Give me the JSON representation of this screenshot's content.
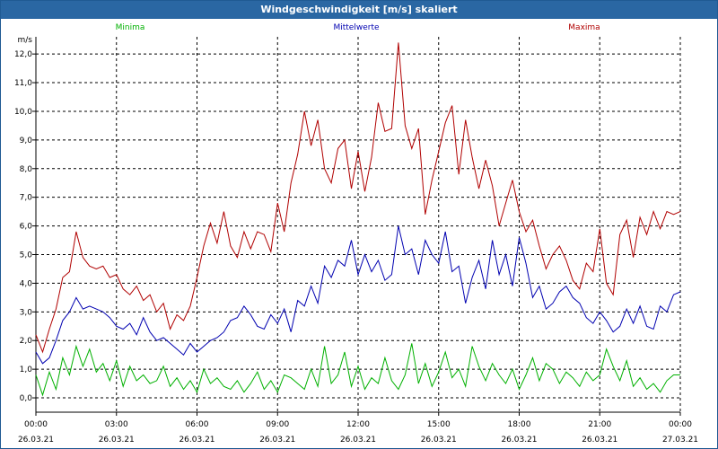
{
  "window": {
    "title": "Windgeschwindigkeit [m/s] skaliert"
  },
  "chart_data": {
    "type": "line",
    "title": "Windgeschwindigkeit [m/s] skaliert",
    "ylabel": "m/s",
    "ylim": [
      -0.5,
      12.6
    ],
    "y_ticks": [
      "0,0",
      "1,0",
      "2,0",
      "3,0",
      "4,0",
      "5,0",
      "6,0",
      "7,0",
      "8,0",
      "9,0",
      "10,0",
      "11,0",
      "12,0"
    ],
    "x_ticks": [
      {
        "time": "00:00",
        "date": "26.03.21"
      },
      {
        "time": "03:00",
        "date": "26.03.21"
      },
      {
        "time": "06:00",
        "date": "26.03.21"
      },
      {
        "time": "09:00",
        "date": "26.03.21"
      },
      {
        "time": "12:00",
        "date": "26.03.21"
      },
      {
        "time": "15:00",
        "date": "26.03.21"
      },
      {
        "time": "18:00",
        "date": "26.03.21"
      },
      {
        "time": "21:00",
        "date": "26.03.21"
      },
      {
        "time": "00:00",
        "date": "27.03.21"
      }
    ],
    "xlim_hours": [
      0,
      24
    ],
    "grid": true,
    "series": [
      {
        "name": "Minima",
        "color": "#00b000",
        "legend_position": "top-left",
        "x": [
          0,
          0.25,
          0.5,
          0.75,
          1.0,
          1.25,
          1.5,
          1.75,
          2.0,
          2.25,
          2.5,
          2.75,
          3.0,
          3.25,
          3.5,
          3.75,
          4.0,
          4.25,
          4.5,
          4.75,
          5.0,
          5.25,
          5.5,
          5.75,
          6.0,
          6.25,
          6.5,
          6.75,
          7.0,
          7.25,
          7.5,
          7.75,
          8.0,
          8.25,
          8.5,
          8.75,
          9.0,
          9.25,
          9.5,
          9.75,
          10.0,
          10.25,
          10.5,
          10.75,
          11.0,
          11.25,
          11.5,
          11.75,
          12.0,
          12.25,
          12.5,
          12.75,
          13.0,
          13.25,
          13.5,
          13.75,
          14.0,
          14.25,
          14.5,
          14.75,
          15.0,
          15.25,
          15.5,
          15.75,
          16.0,
          16.25,
          16.5,
          16.75,
          17.0,
          17.25,
          17.5,
          17.75,
          18.0,
          18.25,
          18.5,
          18.75,
          19.0,
          19.25,
          19.5,
          19.75,
          20.0,
          20.25,
          20.5,
          20.75,
          21.0,
          21.25,
          21.5,
          21.75,
          22.0,
          22.25,
          22.5,
          22.75,
          23.0,
          23.25,
          23.5,
          23.75,
          24.0
        ],
        "values": [
          0.8,
          0.1,
          0.9,
          0.3,
          1.4,
          0.8,
          1.8,
          1.1,
          1.7,
          0.9,
          1.2,
          0.6,
          1.3,
          0.4,
          1.1,
          0.6,
          0.8,
          0.5,
          0.6,
          1.1,
          0.4,
          0.7,
          0.3,
          0.6,
          0.2,
          1.0,
          0.5,
          0.7,
          0.4,
          0.3,
          0.6,
          0.2,
          0.5,
          0.9,
          0.3,
          0.6,
          0.2,
          0.8,
          0.7,
          0.5,
          0.3,
          1.0,
          0.4,
          1.8,
          0.5,
          0.8,
          1.6,
          0.4,
          1.1,
          0.3,
          0.7,
          0.5,
          1.4,
          0.6,
          0.3,
          0.8,
          1.9,
          0.5,
          1.2,
          0.4,
          0.9,
          1.6,
          0.7,
          1.0,
          0.4,
          1.8,
          1.1,
          0.6,
          1.2,
          0.8,
          0.5,
          1.0,
          0.3,
          0.8,
          1.4,
          0.6,
          1.2,
          1.0,
          0.5,
          0.9,
          0.7,
          0.4,
          0.9,
          0.6,
          0.8,
          1.7,
          1.1,
          0.6,
          1.3,
          0.4,
          0.7,
          0.3,
          0.5,
          0.2,
          0.6,
          0.8,
          0.8
        ]
      },
      {
        "name": "Mittelwerte",
        "color": "#0000b0",
        "legend_position": "top-center",
        "x": [
          0,
          0.25,
          0.5,
          0.75,
          1.0,
          1.25,
          1.5,
          1.75,
          2.0,
          2.25,
          2.5,
          2.75,
          3.0,
          3.25,
          3.5,
          3.75,
          4.0,
          4.25,
          4.5,
          4.75,
          5.0,
          5.25,
          5.5,
          5.75,
          6.0,
          6.25,
          6.5,
          6.75,
          7.0,
          7.25,
          7.5,
          7.75,
          8.0,
          8.25,
          8.5,
          8.75,
          9.0,
          9.25,
          9.5,
          9.75,
          10.0,
          10.25,
          10.5,
          10.75,
          11.0,
          11.25,
          11.5,
          11.75,
          12.0,
          12.25,
          12.5,
          12.75,
          13.0,
          13.25,
          13.5,
          13.75,
          14.0,
          14.25,
          14.5,
          14.75,
          15.0,
          15.25,
          15.5,
          15.75,
          16.0,
          16.25,
          16.5,
          16.75,
          17.0,
          17.25,
          17.5,
          17.75,
          18.0,
          18.25,
          18.5,
          18.75,
          19.0,
          19.25,
          19.5,
          19.75,
          20.0,
          20.25,
          20.5,
          20.75,
          21.0,
          21.25,
          21.5,
          21.75,
          22.0,
          22.25,
          22.5,
          22.75,
          23.0,
          23.25,
          23.5,
          23.75,
          24.0
        ],
        "values": [
          1.6,
          1.2,
          1.4,
          2.0,
          2.7,
          3.0,
          3.5,
          3.1,
          3.2,
          3.1,
          3.0,
          2.8,
          2.5,
          2.4,
          2.6,
          2.2,
          2.8,
          2.3,
          2.0,
          2.1,
          1.9,
          1.7,
          1.5,
          1.9,
          1.6,
          1.8,
          2.0,
          2.1,
          2.3,
          2.7,
          2.8,
          3.2,
          2.9,
          2.5,
          2.4,
          2.9,
          2.6,
          3.1,
          2.3,
          3.4,
          3.2,
          3.9,
          3.3,
          4.6,
          4.2,
          4.8,
          4.6,
          5.5,
          4.3,
          5.0,
          4.4,
          4.8,
          4.1,
          4.3,
          6.0,
          5.0,
          5.2,
          4.3,
          5.5,
          5.0,
          4.7,
          5.8,
          4.4,
          4.6,
          3.3,
          4.2,
          4.8,
          3.8,
          5.5,
          4.3,
          5.0,
          3.9,
          5.6,
          4.7,
          3.5,
          3.9,
          3.1,
          3.3,
          3.7,
          3.9,
          3.5,
          3.3,
          2.8,
          2.6,
          3.0,
          2.7,
          2.3,
          2.5,
          3.1,
          2.6,
          3.2,
          2.5,
          2.4,
          3.2,
          3.0,
          3.6,
          3.7
        ]
      },
      {
        "name": "Maxima",
        "color": "#b00000",
        "legend_position": "top-right",
        "x": [
          0,
          0.25,
          0.5,
          0.75,
          1.0,
          1.25,
          1.5,
          1.75,
          2.0,
          2.25,
          2.5,
          2.75,
          3.0,
          3.25,
          3.5,
          3.75,
          4.0,
          4.25,
          4.5,
          4.75,
          5.0,
          5.25,
          5.5,
          5.75,
          6.0,
          6.25,
          6.5,
          6.75,
          7.0,
          7.25,
          7.5,
          7.75,
          8.0,
          8.25,
          8.5,
          8.75,
          9.0,
          9.25,
          9.5,
          9.75,
          10.0,
          10.25,
          10.5,
          10.75,
          11.0,
          11.25,
          11.5,
          11.75,
          12.0,
          12.25,
          12.5,
          12.75,
          13.0,
          13.25,
          13.5,
          13.75,
          14.0,
          14.25,
          14.5,
          14.75,
          15.0,
          15.25,
          15.5,
          15.75,
          16.0,
          16.25,
          16.5,
          16.75,
          17.0,
          17.25,
          17.5,
          17.75,
          18.0,
          18.25,
          18.5,
          18.75,
          19.0,
          19.25,
          19.5,
          19.75,
          20.0,
          20.25,
          20.5,
          20.75,
          21.0,
          21.25,
          21.5,
          21.75,
          22.0,
          22.25,
          22.5,
          22.75,
          23.0,
          23.25,
          23.5,
          23.75,
          24.0
        ],
        "values": [
          2.2,
          1.6,
          2.4,
          3.1,
          4.2,
          4.4,
          5.8,
          4.9,
          4.6,
          4.5,
          4.6,
          4.2,
          4.3,
          3.8,
          3.6,
          3.9,
          3.4,
          3.6,
          3.0,
          3.3,
          2.4,
          2.9,
          2.7,
          3.2,
          4.2,
          5.3,
          6.1,
          5.4,
          6.5,
          5.3,
          4.9,
          5.8,
          5.2,
          5.8,
          5.7,
          5.1,
          6.8,
          5.8,
          7.5,
          8.5,
          10.0,
          8.8,
          9.7,
          8.0,
          7.5,
          8.7,
          9.0,
          7.3,
          8.6,
          7.2,
          8.4,
          10.3,
          9.3,
          9.4,
          12.4,
          9.5,
          8.7,
          9.4,
          6.4,
          7.6,
          8.6,
          9.6,
          10.2,
          7.8,
          9.7,
          8.4,
          7.3,
          8.3,
          7.4,
          6.0,
          6.8,
          7.6,
          6.5,
          5.8,
          6.2,
          5.3,
          4.5,
          5.0,
          5.3,
          4.8,
          4.1,
          3.8,
          4.7,
          4.4,
          5.9,
          4.0,
          3.6,
          5.7,
          6.2,
          4.9,
          6.3,
          5.7,
          6.5,
          5.9,
          6.5,
          6.4,
          6.5
        ]
      }
    ]
  }
}
